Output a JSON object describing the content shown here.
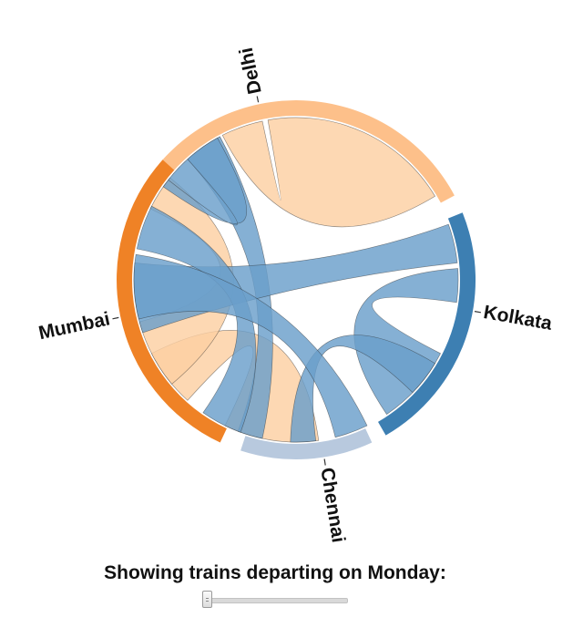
{
  "diagram": {
    "type": "chord",
    "groups": [
      {
        "name": "Delhi",
        "arc_color": "#fdc08a",
        "chord_color": "#fdd0a2"
      },
      {
        "name": "Kolkata",
        "arc_color": "#3d7fb2",
        "chord_color": "#6a9fca"
      },
      {
        "name": "Chennai",
        "arc_color": "#b8c9de",
        "chord_color": "#c6d3e6"
      },
      {
        "name": "Mumbai",
        "arc_color": "#ef8226",
        "chord_color": "#fdd0a2"
      }
    ]
  },
  "caption": "Showing trains departing on Monday:",
  "day_slider": {
    "value": 0,
    "max": 6
  }
}
